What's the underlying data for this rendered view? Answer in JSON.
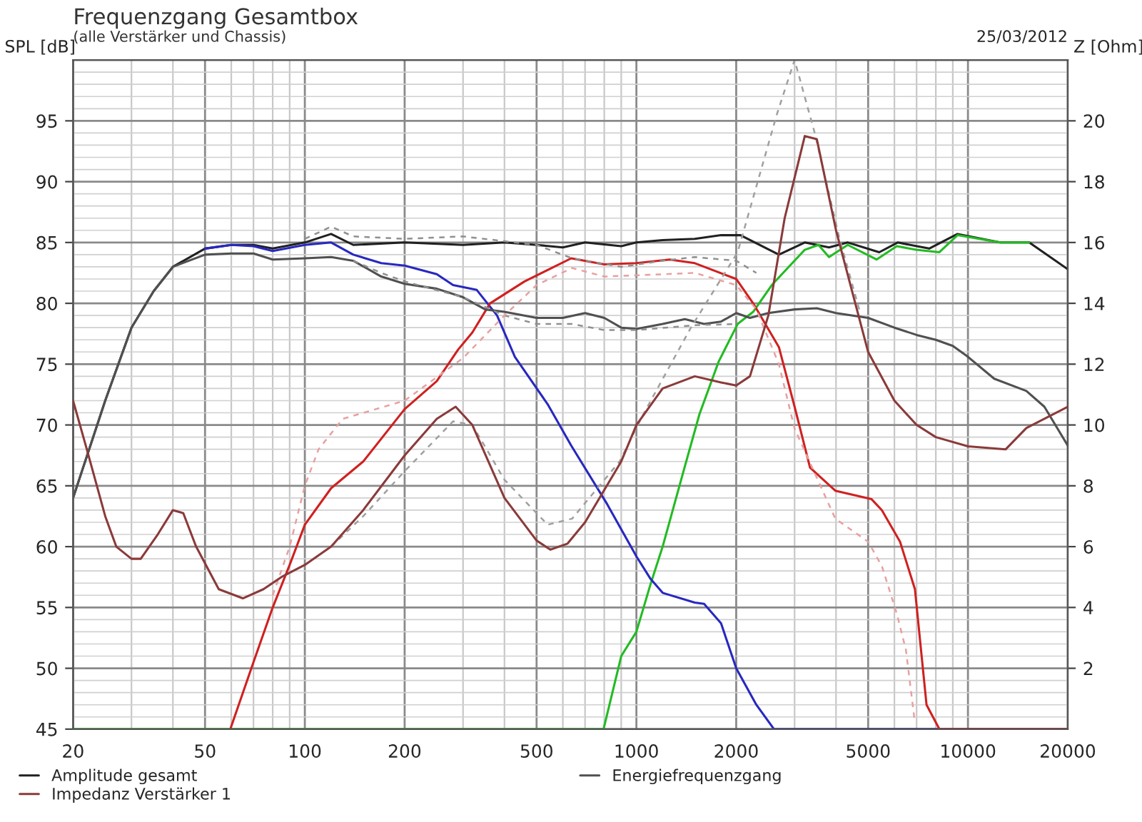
{
  "chart_data": {
    "type": "line",
    "title": "Frequenzgang Gesamtbox",
    "subtitle": "(alle Verstärker und Chassis)",
    "ylabel": "SPL [dB]",
    "y2label": "Z [Ohm]",
    "annotations": [
      "25/03/2012"
    ],
    "log": "x",
    "grid": true,
    "legend": "bottom",
    "xlim": [
      20,
      20000
    ],
    "xticks": [
      20,
      50,
      100,
      200,
      500,
      1000,
      2000,
      5000,
      10000,
      20000
    ],
    "ylim": [
      45,
      100
    ],
    "yticks": [
      45,
      50,
      55,
      60,
      65,
      70,
      75,
      80,
      85,
      90,
      95
    ],
    "y2lim": [
      0,
      22
    ],
    "y2ticks": [
      2,
      4,
      6,
      8,
      10,
      12,
      14,
      16,
      18,
      20
    ],
    "series": [
      {
        "name": "Amplitude gesamt",
        "color": "#202020",
        "x": [
          20,
          25,
          30,
          35,
          40,
          50,
          60,
          70,
          80,
          100,
          120,
          140,
          200,
          300,
          400,
          500,
          600,
          700,
          900,
          1000,
          1200,
          1500,
          1800,
          2060,
          2690,
          3220,
          3810,
          4340,
          5400,
          6140,
          7640,
          9300,
          12500,
          15300,
          20000
        ],
        "values": [
          64,
          72,
          78,
          81,
          83,
          84.5,
          84.8,
          84.8,
          84.5,
          85,
          85.7,
          84.8,
          85,
          84.8,
          85,
          84.8,
          84.6,
          85,
          84.7,
          85,
          85.2,
          85.3,
          85.6,
          85.6,
          84,
          85,
          84.6,
          85,
          84.2,
          85,
          84.5,
          85.7,
          85,
          85,
          82.8
        ]
      },
      {
        "color": "#22bb22",
        "x": [
          20,
          796,
          900,
          1000,
          1100,
          1200,
          1400,
          1550,
          1770,
          2020,
          2250,
          2560,
          3220,
          3540,
          3810,
          4340,
          5300,
          6100,
          6970,
          8200,
          9300,
          12500,
          15300
        ],
        "values": [
          45,
          45,
          51,
          53,
          56.8,
          60,
          66.6,
          70.9,
          75.2,
          78.3,
          79.3,
          81.5,
          84.4,
          84.8,
          83.8,
          84.8,
          83.6,
          84.7,
          84.4,
          84.2,
          85.6,
          85,
          85
        ]
      },
      {
        "name": "Impedanz Verstärker 1",
        "color": "#8b3a3a",
        "axis": "y2",
        "x": [
          20,
          22,
          25,
          27,
          30,
          32,
          36,
          40,
          43,
          47,
          55,
          65,
          75,
          85,
          100,
          120,
          150,
          200,
          250,
          285,
          320,
          400,
          500,
          550,
          620,
          700,
          900,
          1000,
          1200,
          1500,
          1800,
          2000,
          2200,
          2500,
          2800,
          3220,
          3500,
          4000,
          5000,
          6000,
          7000,
          8000,
          10000,
          13000,
          15000,
          20000
        ],
        "values": [
          10.8,
          9.2,
          7.0,
          6.0,
          5.6,
          5.6,
          6.4,
          7.2,
          7.1,
          6.0,
          4.6,
          4.3,
          4.6,
          5.0,
          5.4,
          6.0,
          7.2,
          9.0,
          10.2,
          10.6,
          10.0,
          7.6,
          6.2,
          5.9,
          6.1,
          6.8,
          8.8,
          10.0,
          11.2,
          11.6,
          11.4,
          11.3,
          11.6,
          13.6,
          16.8,
          19.5,
          19.4,
          16.4,
          12.4,
          10.8,
          10.0,
          9.6,
          9.3,
          9.2,
          9.9,
          10.6
        ]
      },
      {
        "color": "#2828c0",
        "x": [
          50,
          60,
          70,
          80,
          100,
          120,
          140,
          170,
          200,
          250,
          280,
          330,
          380,
          430,
          540,
          636,
          816,
          1000,
          1100,
          1200,
          1500,
          1600,
          1800,
          2000,
          2300,
          2600,
          20000
        ],
        "values": [
          84.5,
          84.8,
          84.7,
          84.3,
          84.8,
          85,
          84,
          83.3,
          83.1,
          82.4,
          81.5,
          81.1,
          79,
          75.6,
          71.7,
          68.3,
          63.5,
          59.2,
          57.4,
          56.2,
          55.4,
          55.3,
          53.7,
          50,
          47,
          45,
          45
        ]
      },
      {
        "color": "#d02020",
        "x": [
          59.6,
          70,
          80,
          90,
          100,
          120,
          150,
          200,
          250,
          290,
          320,
          362,
          460,
          636,
          800,
          1000,
          1260,
          1500,
          2000,
          2250,
          2690,
          3000,
          3340,
          3980,
          5120,
          5500,
          6240,
          6920,
          7200,
          7500,
          8200,
          20000
        ],
        "values": [
          45,
          50.5,
          55,
          58.5,
          61.8,
          64.8,
          67,
          71.3,
          73.6,
          76.2,
          77.6,
          80,
          81.8,
          83.7,
          83.2,
          83.3,
          83.6,
          83.3,
          82,
          80,
          76.4,
          71.5,
          66.5,
          64.6,
          63.9,
          63,
          60.4,
          56.5,
          51.8,
          47,
          45,
          45
        ]
      },
      {
        "name": "Energiefrequenzgang",
        "color": "#505050",
        "x": [
          20,
          25,
          30,
          35,
          40,
          50,
          60,
          70,
          80,
          100,
          120,
          140,
          170,
          200,
          250,
          300,
          350,
          400,
          500,
          600,
          700,
          800,
          900,
          1000,
          1200,
          1400,
          1600,
          1800,
          2000,
          2200,
          2500,
          3000,
          3500,
          4000,
          5000,
          6000,
          7000,
          8000,
          9000,
          10000,
          12000,
          15000,
          17000,
          20000
        ],
        "values": [
          64,
          72,
          78,
          81,
          83,
          84,
          84.1,
          84.1,
          83.6,
          83.7,
          83.8,
          83.5,
          82.2,
          81.6,
          81.2,
          80.5,
          79.5,
          79.3,
          78.8,
          78.8,
          79.2,
          78.8,
          78,
          77.9,
          78.3,
          78.7,
          78.3,
          78.5,
          79.2,
          78.8,
          79.2,
          79.5,
          79.6,
          79.2,
          78.8,
          78,
          77.4,
          77,
          76.5,
          75.6,
          73.8,
          72.8,
          71.5,
          68.3
        ]
      },
      {
        "color": "#909090",
        "line_style": "dashed",
        "x": [
          100,
          120,
          140,
          200,
          300,
          500,
          640,
          900,
          1200,
          1500,
          2000,
          2300
        ],
        "values": [
          85.3,
          86.3,
          85.5,
          85.3,
          85.5,
          84.8,
          83.7,
          83,
          83.5,
          83.8,
          83.5,
          82.5
        ]
      },
      {
        "color": "#909090",
        "line_style": "dashed",
        "x": [
          140,
          170,
          200,
          300,
          400,
          500,
          640,
          800,
          1000,
          1500,
          2000
        ],
        "values": [
          83.5,
          82.5,
          81.8,
          80.5,
          79,
          78.3,
          78.3,
          77.8,
          77.8,
          78.2,
          78.3
        ]
      },
      {
        "color": "#e8a0a0",
        "line_style": "dashed",
        "x": [
          80,
          90,
          100,
          110,
          130,
          200,
          300,
          400,
          500,
          640,
          800,
          1000,
          1500,
          2000,
          2300,
          2690,
          3000,
          3980,
          5000,
          5500,
          6100,
          6500,
          6920
        ],
        "values": [
          56,
          60,
          65,
          68,
          70.5,
          72,
          75.5,
          79,
          81.5,
          82.9,
          82.2,
          82.3,
          82.5,
          81.5,
          79.5,
          75,
          69.7,
          62.3,
          60.4,
          58.4,
          54.5,
          51.5,
          45.5
        ]
      },
      {
        "color": "#a0a0a0",
        "line_style": "dashed",
        "x": [
          120,
          150,
          200,
          280,
          320,
          400,
          540,
          640,
          890,
          1050,
          1460,
          2020,
          2650,
          3000,
          3450,
          4100,
          4700
        ],
        "values": [
          60,
          62.5,
          66.2,
          70.3,
          70,
          65.5,
          61.8,
          62.3,
          67,
          70.9,
          78,
          84.2,
          95.5,
          100,
          94,
          85.3,
          79.5
        ]
      }
    ]
  }
}
